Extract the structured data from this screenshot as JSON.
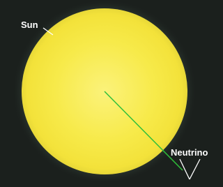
{
  "labels": {
    "sun": "Sun",
    "neutrino": "Neutrino"
  }
}
